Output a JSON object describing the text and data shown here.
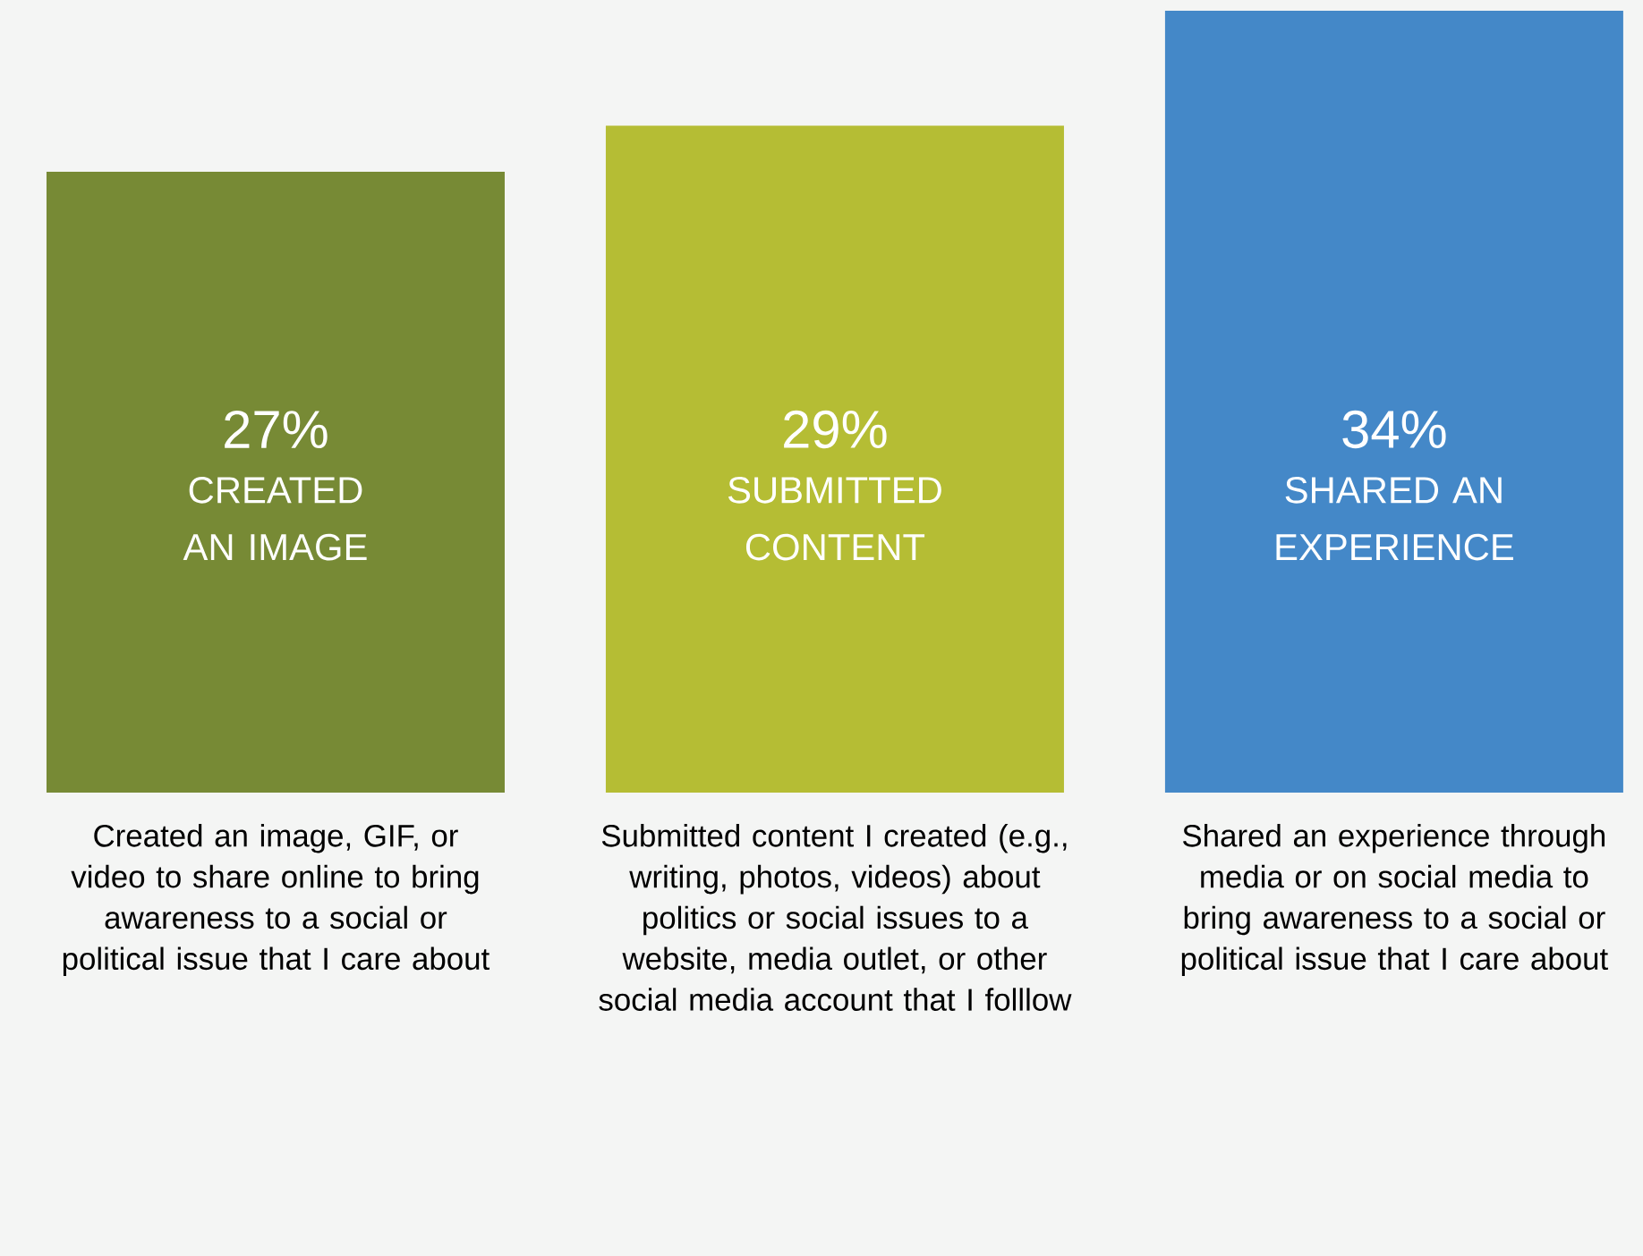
{
  "chart_data": {
    "type": "bar",
    "categories": [
      "Created an image, GIF, or video to share online to bring awareness to a social or political issue that I care about",
      "Submitted content I created (e.g., writing, photos, videos) about politics or social issues to a website, media outlet, or other social media account that I folllow",
      "Shared an experience through media or on social media to bring awareness to a social or political issue that I care about"
    ],
    "values": [
      27,
      29,
      34
    ],
    "colors": [
      "#778a35",
      "#b5bd34",
      "#4488c8"
    ],
    "ylim": [
      0,
      34
    ],
    "value_labels": [
      "27%",
      "29%",
      "34%"
    ],
    "annotations": [
      "CREATED AN IMAGE",
      "SUBMITTED CONTENT",
      "SHARED AN EXPERIENCE"
    ]
  }
}
